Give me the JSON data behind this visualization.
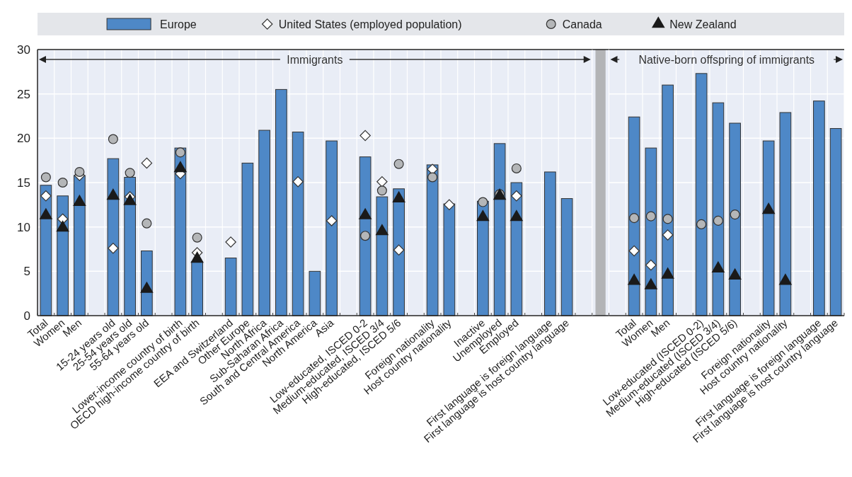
{
  "chart_data": [
    {
      "type": "bar",
      "categories": [
        "Total",
        "Women",
        "Men",
        null,
        "15-24 years old",
        "25-54 years old",
        "55-64 years old",
        null,
        "Lower-income country of birth",
        "OECD high-income country of birth",
        null,
        "EEA and Switzerland",
        "Other Europe",
        "North Africa",
        "Sub-Saharan Africa",
        "South and Central America",
        "North America",
        "Asia",
        null,
        "Low-educated, ISCED 0-2",
        "Medium-educated, ISCED 3/4",
        "High-educated, ISCED 5/6",
        null,
        "Foreign nationality",
        "Host country nationality",
        null,
        "Inactive",
        "Unemployed",
        "Employed",
        null,
        "First language is foreign language",
        "First language is host country language",
        null
      ],
      "series": [
        {
          "name": "Europe",
          "color": "#4e88c7",
          "values": [
            14.7,
            13.5,
            15.8,
            null,
            17.7,
            15.6,
            7.3,
            null,
            18.9,
            6.1,
            null,
            6.5,
            17.2,
            20.9,
            25.5,
            20.7,
            5.0,
            19.7,
            null,
            17.9,
            13.4,
            14.3,
            null,
            17.0,
            12.6,
            null,
            12.9,
            19.4,
            15.0,
            null,
            16.2,
            13.2,
            null
          ]
        },
        {
          "name": "United States (employed population)",
          "type": "scatter",
          "marker": "diamond",
          "color": "#ffffff",
          "values": [
            13.5,
            10.9,
            15.8,
            null,
            7.6,
            13.4,
            17.2,
            null,
            16.0,
            7.1,
            null,
            8.3,
            null,
            null,
            null,
            15.1,
            null,
            10.7,
            null,
            20.3,
            15.1,
            7.4,
            null,
            16.5,
            12.5,
            null,
            null,
            null,
            13.5,
            null,
            null,
            null,
            null
          ]
        },
        {
          "name": "Canada",
          "type": "scatter",
          "marker": "circle",
          "color": "#b4b6b8",
          "values": [
            15.6,
            15.0,
            16.2,
            null,
            19.9,
            16.1,
            10.4,
            null,
            18.4,
            8.8,
            null,
            null,
            null,
            null,
            null,
            null,
            null,
            null,
            null,
            9.0,
            14.1,
            17.1,
            null,
            15.6,
            null,
            null,
            12.8,
            13.7,
            16.6,
            null,
            null,
            null,
            null
          ]
        },
        {
          "name": "New Zealand",
          "type": "scatter",
          "marker": "triangle",
          "color": "#1a1a1a",
          "values": [
            11.3,
            9.9,
            12.8,
            null,
            13.5,
            12.9,
            3.0,
            null,
            16.6,
            6.4,
            null,
            null,
            null,
            null,
            null,
            null,
            null,
            null,
            null,
            11.3,
            9.5,
            13.2,
            null,
            null,
            null,
            null,
            11.1,
            13.5,
            11.1,
            null,
            null,
            null,
            null
          ]
        }
      ],
      "ylim": [
        0,
        30
      ],
      "yticks": [
        0,
        5,
        10,
        15,
        20,
        25,
        30
      ],
      "grid": true,
      "legend": "top",
      "annotations": [
        "Immigrants"
      ]
    },
    {
      "type": "bar",
      "categories": [
        null,
        "Total",
        "Women",
        "Men",
        null,
        "Low-educated (ISCED 0-2)",
        "Medium-educated (ISCED 3/4)",
        "High-educated (ISCED 5/6)",
        null,
        "Foreign nationality",
        "Host country nationality",
        null,
        "First language is foreign language",
        "First language is host country language"
      ],
      "series": [
        {
          "color": "#4e88c7",
          "values": [
            null,
            22.4,
            18.9,
            26.0,
            null,
            27.3,
            24.0,
            21.7,
            null,
            19.7,
            22.9,
            null,
            24.2,
            21.1
          ]
        },
        {
          "type": "scatter",
          "marker": "diamond",
          "color": "#ffffff",
          "values": [
            null,
            7.3,
            5.7,
            9.1,
            null,
            null,
            null,
            null,
            null,
            null,
            null,
            null,
            null,
            null
          ]
        },
        {
          "type": "scatter",
          "marker": "circle",
          "color": "#b4b6b8",
          "values": [
            null,
            11.0,
            11.2,
            10.9,
            null,
            10.3,
            10.7,
            11.4,
            null,
            null,
            null,
            null,
            null,
            null
          ]
        },
        {
          "type": "scatter",
          "marker": "triangle",
          "color": "#1a1a1a",
          "values": [
            null,
            3.9,
            3.4,
            4.6,
            null,
            null,
            5.3,
            4.5,
            null,
            11.9,
            3.9,
            null,
            null,
            null
          ]
        }
      ],
      "ylim": [
        0,
        30
      ],
      "yticks": [
        0,
        5,
        10,
        15,
        20,
        25,
        30
      ],
      "grid": true,
      "tick_labels": "x",
      "annotations": [
        "Native-born offspring of immigrants"
      ]
    }
  ]
}
